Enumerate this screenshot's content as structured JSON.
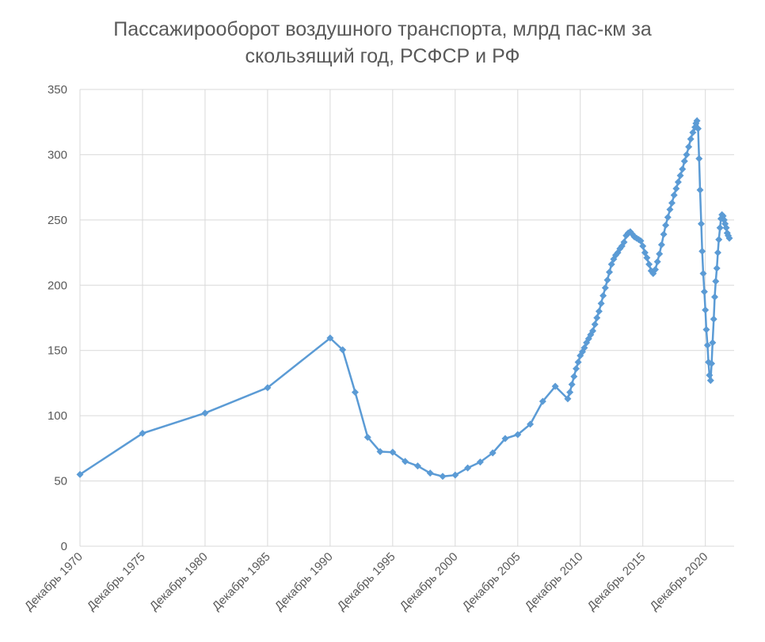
{
  "chart_data": {
    "type": "line",
    "title": "Пассажирооборот воздушного транспорта, млрд пас-км за скользящий год, РСФСР и РФ",
    "x": [
      1970,
      1975,
      1980,
      1985,
      1990,
      1991,
      1992,
      1993,
      1994,
      1995,
      1996,
      1997,
      1998,
      1999,
      2000,
      2001,
      2002,
      2003,
      2004,
      2005,
      2006,
      2007,
      2008,
      2009.0,
      2009.17,
      2009.33,
      2009.5,
      2009.67,
      2009.83,
      2010.0,
      2010.17,
      2010.33,
      2010.5,
      2010.67,
      2010.83,
      2011.0,
      2011.17,
      2011.33,
      2011.5,
      2011.67,
      2011.83,
      2012.0,
      2012.17,
      2012.33,
      2012.5,
      2012.67,
      2012.83,
      2013.0,
      2013.17,
      2013.33,
      2013.5,
      2013.67,
      2013.83,
      2014.0,
      2014.17,
      2014.33,
      2014.5,
      2014.67,
      2014.83,
      2015.0,
      2015.17,
      2015.33,
      2015.5,
      2015.67,
      2015.83,
      2016.0,
      2016.17,
      2016.33,
      2016.5,
      2016.67,
      2016.83,
      2017.0,
      2017.17,
      2017.33,
      2017.5,
      2017.67,
      2017.83,
      2018.0,
      2018.17,
      2018.33,
      2018.5,
      2018.67,
      2018.83,
      2019.0,
      2019.17,
      2019.25,
      2019.33,
      2019.42,
      2019.5,
      2019.58,
      2019.67,
      2019.75,
      2019.83,
      2019.92,
      2020.0,
      2020.08,
      2020.17,
      2020.25,
      2020.33,
      2020.42,
      2020.5,
      2020.58,
      2020.67,
      2020.75,
      2020.83,
      2020.92,
      2021.0,
      2021.08,
      2021.17,
      2021.25,
      2021.33,
      2021.42,
      2021.5,
      2021.58,
      2021.67,
      2021.75,
      2021.83,
      2021.92
    ],
    "series": [
      {
        "color": "#5b9bd5",
        "values": [
          55,
          86.5,
          102,
          121.5,
          159.5,
          150.5,
          118,
          83.5,
          72.5,
          72,
          65,
          61.5,
          56,
          53.5,
          54.5,
          60,
          64.5,
          71.5,
          82.5,
          85.5,
          93.5,
          111,
          122.5,
          113,
          118,
          124,
          130,
          136,
          141,
          146,
          149,
          152,
          156,
          159,
          162,
          165,
          170,
          175,
          180,
          186,
          192,
          198,
          204,
          210,
          216,
          220,
          223,
          225,
          228,
          230,
          233,
          238,
          240,
          241,
          239,
          237,
          236,
          235,
          234,
          230,
          225,
          221,
          216,
          211,
          209,
          212,
          218,
          224,
          231,
          239,
          246,
          252,
          258,
          263,
          269,
          274,
          279,
          284,
          289,
          295,
          300,
          306,
          312,
          317,
          321,
          324,
          326,
          320,
          297,
          273,
          247,
          226,
          209,
          195,
          181,
          166,
          154,
          141,
          131,
          127,
          140,
          156,
          174,
          191,
          203,
          213,
          225,
          235,
          244,
          251,
          254,
          253,
          250,
          247,
          244,
          240,
          238,
          236
        ]
      }
    ],
    "xlim": [
      1970,
      2022.3
    ],
    "xticks": [
      {
        "value": 1970,
        "label": "Декабрь 1970"
      },
      {
        "value": 1975,
        "label": "Декабрь 1975"
      },
      {
        "value": 1980,
        "label": "Декабрь 1980"
      },
      {
        "value": 1985,
        "label": "Декабрь 1985"
      },
      {
        "value": 1990,
        "label": "Декабрь 1990"
      },
      {
        "value": 1995,
        "label": "Декабрь 1995"
      },
      {
        "value": 2000,
        "label": "Декабрь 2000"
      },
      {
        "value": 2005,
        "label": "Декабрь 2005"
      },
      {
        "value": 2010,
        "label": "Декабрь 2010"
      },
      {
        "value": 2015,
        "label": "Декабрь 2015"
      },
      {
        "value": 2020,
        "label": "Декабрь 2020"
      }
    ],
    "ylim": [
      0,
      350
    ],
    "yticks": [
      0,
      50,
      100,
      150,
      200,
      250,
      300,
      350
    ],
    "grid": true
  }
}
